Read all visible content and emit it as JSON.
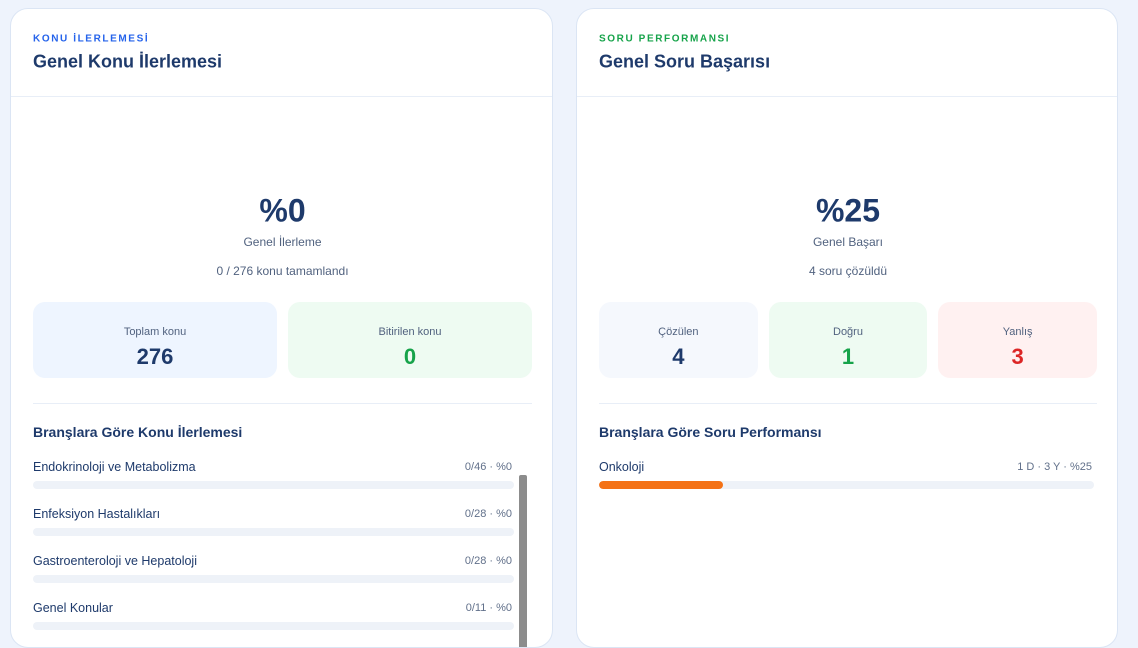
{
  "cards": [
    {
      "eyebrow": "KONU İLERLEMESİ",
      "title": "Genel Konu İlerlemesi",
      "gauge": {
        "value": 0,
        "label": "%0",
        "caption": "Genel İlerleme"
      },
      "summary": "0 / 276 konu tamamlandı",
      "stats": [
        {
          "label": "Toplam konu",
          "value": 276
        },
        {
          "label": "Bitirilen konu",
          "value": 0
        }
      ],
      "section_title": "Branşlara Göre Konu İlerlemesi",
      "items": [
        {
          "name": "Endokrinoloji ve Metabolizma",
          "meta": "0/46 · %0",
          "percent": 0
        },
        {
          "name": "Enfeksiyon Hastalıkları",
          "meta": "0/28 · %0",
          "percent": 0
        },
        {
          "name": "Gastroenteroloji ve Hepatoloji",
          "meta": "0/28 · %0",
          "percent": 0
        },
        {
          "name": "Genel Konular",
          "meta": "0/11 · %0",
          "percent": 0
        }
      ]
    },
    {
      "eyebrow": "SORU PERFORMANSI",
      "title": "Genel Soru Başarısı",
      "gauge": {
        "value": 25,
        "label": "%25",
        "caption": "Genel Başarı"
      },
      "summary": "4 soru çözüldü",
      "stats": [
        {
          "label": "Çözülen",
          "value": 4
        },
        {
          "label": "Doğru",
          "value": 1
        },
        {
          "label": "Yanlış",
          "value": 3
        }
      ],
      "section_title": "Branşlara Göre Soru Performansı",
      "items": [
        {
          "name": "Onkoloji",
          "meta": "1 D · 3 Y · %25",
          "percent": 25
        }
      ]
    }
  ]
}
